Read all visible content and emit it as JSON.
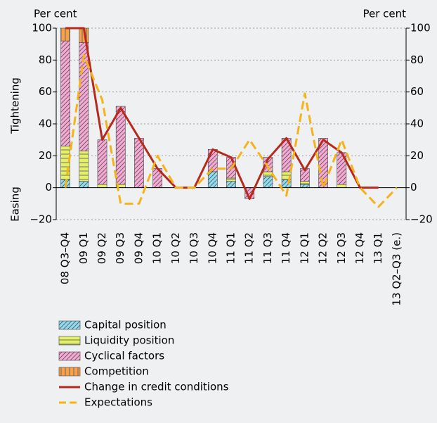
{
  "chart_data": {
    "type": "bar",
    "y_label_top": "Tightening",
    "y_label_bottom": "Easing",
    "y_unit_left": "Per cent",
    "y_unit_right": "Per cent",
    "categories": [
      "08 Q3–Q4",
      "09 Q1",
      "09 Q2",
      "09 Q3",
      "09 Q4",
      "10 Q1",
      "10 Q2",
      "10 Q3",
      "10 Q4",
      "11 Q1",
      "11 Q2",
      "11 Q3",
      "11 Q4",
      "12 Q1",
      "12 Q2",
      "12 Q3",
      "12 Q4",
      "13 Q1",
      "13 Q2–Q3 (e.)"
    ],
    "series": [
      {
        "name": "Capital position",
        "type": "bar",
        "color": "#8fdcf0",
        "pattern": "diagonal",
        "values": [
          5,
          4,
          0,
          0,
          0,
          0,
          0,
          0,
          10,
          4,
          0,
          7,
          5,
          2,
          0,
          0,
          0,
          0,
          null
        ]
      },
      {
        "name": "Liquidity position",
        "type": "bar",
        "color": "#e4f06a",
        "pattern": "horizontal",
        "values": [
          21,
          19,
          2,
          2,
          0,
          0,
          0,
          0,
          0,
          2,
          0,
          3,
          5,
          2,
          0,
          2,
          0,
          0,
          null
        ]
      },
      {
        "name": "Cyclical factors",
        "type": "bar",
        "color": "#f7a8d4",
        "pattern": "diagonal",
        "values": [
          66,
          68,
          28,
          49,
          31,
          12,
          0,
          0,
          14,
          13,
          -7,
          9,
          21,
          8,
          31,
          20,
          0,
          0,
          null
        ]
      },
      {
        "name": "Competition",
        "type": "bar",
        "color": "#f7a14a",
        "pattern": "vertical",
        "values": [
          8,
          9,
          0,
          0,
          0,
          0,
          0,
          0,
          0,
          0,
          0,
          0,
          0,
          0,
          0,
          0,
          0,
          0,
          null
        ]
      },
      {
        "name": "Change in credit conditions",
        "type": "line",
        "color": "#b52a1c",
        "dashed": false,
        "values": [
          100,
          100,
          30,
          50,
          31,
          12,
          0,
          0,
          24,
          19,
          -7,
          18,
          31,
          11,
          30,
          22,
          0,
          0,
          null
        ]
      },
      {
        "name": "Expectations",
        "type": "line",
        "color": "#f5b21a",
        "dashed": true,
        "values": [
          0,
          83,
          55,
          -10,
          -10,
          20,
          0,
          0,
          12,
          12,
          30,
          13,
          -5,
          59,
          0,
          30,
          0,
          -12,
          0
        ]
      }
    ],
    "ylim": [
      -20,
      100
    ],
    "yticks": [
      {
        "value": -20,
        "label": "−20"
      },
      0,
      20,
      40,
      60,
      80,
      100
    ],
    "y2lim": [
      -20,
      100
    ],
    "y2ticks": [
      {
        "value": -20,
        "label": "−20"
      },
      0,
      20,
      40,
      60,
      80,
      100
    ],
    "grid": true
  }
}
